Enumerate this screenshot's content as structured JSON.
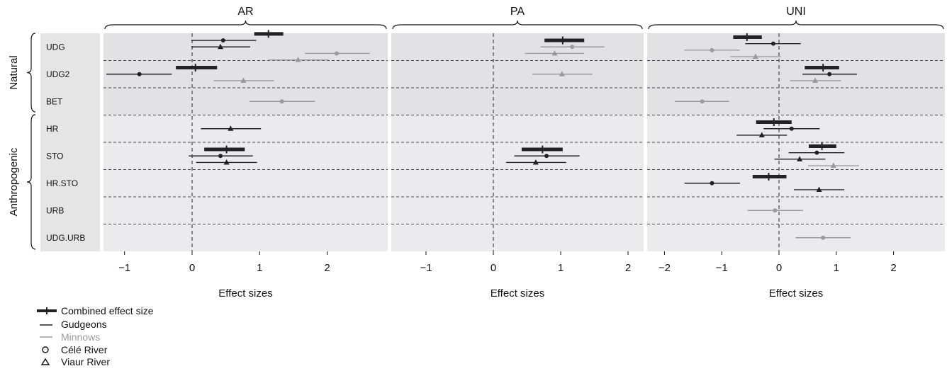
{
  "colors": {
    "combined": "#222222",
    "gudgeons": "#222222",
    "minnows": "#9a9a9a",
    "panel_bg_natural": "#e2e2e4",
    "panel_bg_anthropogenic": "#ebebed",
    "label_bg": "#e5e5e5"
  },
  "group_labels": [
    "Natural",
    "Anthropogenic"
  ],
  "row_labels": [
    "UDG",
    "UDG2",
    "BET",
    "HR",
    "STO",
    "HR.STO",
    "URB",
    "UDG.URB"
  ],
  "legend": {
    "combined": "Combined effect size",
    "gudgeons": "Gudgeons",
    "minnows": "Minnows",
    "cele": "Célé River",
    "viaur": "Viaur River"
  },
  "chart_data": {
    "type": "forest",
    "xlabel": "Effect sizes",
    "panels": [
      {
        "title": "AR",
        "xlim": [
          -1.3,
          2.9
        ],
        "ticks": [
          -1,
          0,
          1,
          2
        ],
        "tick_labels": [
          "−1",
          "0",
          "1",
          "2"
        ],
        "estimates": [
          {
            "row": "UDG",
            "kind": "combined",
            "est": 1.13,
            "lo": 0.92,
            "hi": 1.35
          },
          {
            "row": "UDG",
            "kind": "gudgeons",
            "river": "Célé",
            "est": 0.46,
            "lo": -0.01,
            "hi": 0.95
          },
          {
            "row": "UDG",
            "kind": "gudgeons",
            "river": "Viaur",
            "est": 0.42,
            "lo": -0.01,
            "hi": 0.86
          },
          {
            "row": "UDG",
            "kind": "minnows",
            "river": "Célé",
            "est": 2.14,
            "lo": 1.67,
            "hi": 2.63
          },
          {
            "row": "UDG",
            "kind": "minnows",
            "river": "Viaur",
            "est": 1.57,
            "lo": 1.13,
            "hi": 2.02
          },
          {
            "row": "UDG2",
            "kind": "combined",
            "est": 0.05,
            "lo": -0.24,
            "hi": 0.37
          },
          {
            "row": "UDG2",
            "kind": "gudgeons",
            "river": "Célé",
            "est": -0.78,
            "lo": -1.27,
            "hi": -0.3
          },
          {
            "row": "UDG2",
            "kind": "minnows",
            "river": "Viaur",
            "est": 0.76,
            "lo": 0.32,
            "hi": 1.21
          },
          {
            "row": "BET",
            "kind": "minnows",
            "river": "Célé",
            "est": 1.33,
            "lo": 0.85,
            "hi": 1.82
          },
          {
            "row": "HR",
            "kind": "gudgeons",
            "river": "Viaur",
            "est": 0.57,
            "lo": 0.13,
            "hi": 1.02
          },
          {
            "row": "STO",
            "kind": "combined",
            "est": 0.51,
            "lo": 0.18,
            "hi": 0.78
          },
          {
            "row": "STO",
            "kind": "gudgeons",
            "river": "Célé",
            "est": 0.42,
            "lo": -0.05,
            "hi": 0.9
          },
          {
            "row": "STO",
            "kind": "gudgeons",
            "river": "Viaur",
            "est": 0.51,
            "lo": 0.06,
            "hi": 0.96
          }
        ]
      },
      {
        "title": "PA",
        "xlim": [
          -1.3,
          2.0
        ],
        "ticks": [
          -1,
          0,
          1,
          2
        ],
        "tick_labels": [
          "−1",
          "0",
          "1",
          "2"
        ],
        "estimates": [
          {
            "row": "UDG",
            "kind": "combined",
            "est": 1.03,
            "lo": 0.76,
            "hi": 1.35
          },
          {
            "row": "UDG",
            "kind": "minnows",
            "river": "Célé",
            "est": 1.17,
            "lo": 0.7,
            "hi": 1.65
          },
          {
            "row": "UDG",
            "kind": "minnows",
            "river": "Viaur",
            "est": 0.91,
            "lo": 0.47,
            "hi": 1.35
          },
          {
            "row": "UDG2",
            "kind": "minnows",
            "river": "Viaur",
            "est": 1.02,
            "lo": 0.58,
            "hi": 1.47
          },
          {
            "row": "STO",
            "kind": "combined",
            "est": 0.73,
            "lo": 0.42,
            "hi": 1.03
          },
          {
            "row": "STO",
            "kind": "gudgeons",
            "river": "Célé",
            "est": 0.79,
            "lo": 0.31,
            "hi": 1.28
          },
          {
            "row": "STO",
            "kind": "gudgeons",
            "river": "Viaur",
            "est": 0.63,
            "lo": 0.19,
            "hi": 1.08
          }
        ]
      },
      {
        "title": "UNI",
        "xlim": [
          -2.3,
          2.9
        ],
        "ticks": [
          -2,
          -1,
          0,
          1,
          2
        ],
        "tick_labels": [
          "−2",
          "−1",
          "0",
          "1",
          "2"
        ],
        "estimates": [
          {
            "row": "UDG",
            "kind": "combined",
            "est": -0.56,
            "lo": -0.8,
            "hi": -0.3
          },
          {
            "row": "UDG",
            "kind": "gudgeons",
            "river": "Célé",
            "est": -0.1,
            "lo": -0.59,
            "hi": 0.38
          },
          {
            "row": "UDG",
            "kind": "minnows",
            "river": "Célé",
            "est": -1.17,
            "lo": -1.65,
            "hi": -0.69
          },
          {
            "row": "UDG",
            "kind": "minnows",
            "river": "Viaur",
            "est": -0.41,
            "lo": -0.85,
            "hi": 0.03
          },
          {
            "row": "UDG2",
            "kind": "combined",
            "est": 0.77,
            "lo": 0.45,
            "hi": 1.05
          },
          {
            "row": "UDG2",
            "kind": "gudgeons",
            "river": "Célé",
            "est": 0.88,
            "lo": 0.41,
            "hi": 1.36
          },
          {
            "row": "UDG2",
            "kind": "minnows",
            "river": "Viaur",
            "est": 0.63,
            "lo": 0.19,
            "hi": 1.08
          },
          {
            "row": "BET",
            "kind": "minnows",
            "river": "Célé",
            "est": -1.34,
            "lo": -1.82,
            "hi": -0.87
          },
          {
            "row": "HR",
            "kind": "combined",
            "est": -0.09,
            "lo": -0.4,
            "hi": 0.22
          },
          {
            "row": "HR",
            "kind": "gudgeons",
            "river": "Célé",
            "est": 0.22,
            "lo": -0.27,
            "hi": 0.71
          },
          {
            "row": "HR",
            "kind": "gudgeons",
            "river": "Viaur",
            "est": -0.3,
            "lo": -0.74,
            "hi": 0.14
          },
          {
            "row": "STO",
            "kind": "combined",
            "est": 0.75,
            "lo": 0.52,
            "hi": 1.0
          },
          {
            "row": "STO",
            "kind": "gudgeons",
            "river": "Célé",
            "est": 0.66,
            "lo": 0.17,
            "hi": 1.14
          },
          {
            "row": "STO",
            "kind": "gudgeons",
            "river": "Viaur",
            "est": 0.36,
            "lo": -0.08,
            "hi": 0.81
          },
          {
            "row": "STO",
            "kind": "minnows",
            "river": "Viaur",
            "est": 0.95,
            "lo": 0.51,
            "hi": 1.4
          },
          {
            "row": "HR.STO",
            "kind": "combined",
            "est": -0.18,
            "lo": -0.46,
            "hi": 0.13
          },
          {
            "row": "HR.STO",
            "kind": "gudgeons",
            "river": "Célé",
            "est": -1.17,
            "lo": -1.65,
            "hi": -0.68
          },
          {
            "row": "HR.STO",
            "kind": "gudgeons",
            "river": "Viaur",
            "est": 0.7,
            "lo": 0.26,
            "hi": 1.14
          },
          {
            "row": "URB",
            "kind": "minnows",
            "river": "Célé",
            "est": -0.07,
            "lo": -0.55,
            "hi": 0.42
          },
          {
            "row": "UDG.URB",
            "kind": "minnows",
            "river": "Célé",
            "est": 0.77,
            "lo": 0.29,
            "hi": 1.25
          }
        ]
      }
    ]
  }
}
